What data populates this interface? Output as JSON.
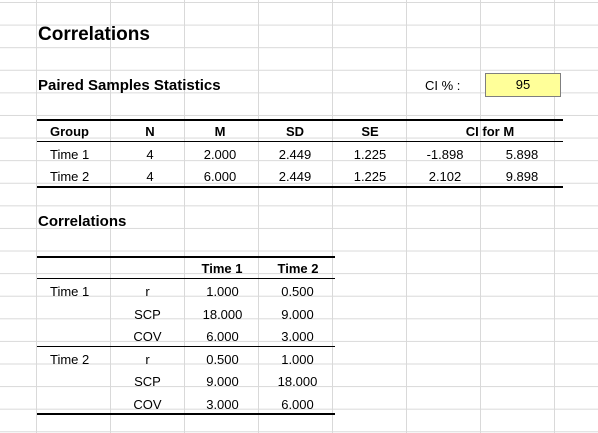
{
  "title": "Correlations",
  "paired": {
    "heading": "Paired Samples Statistics",
    "ci_label": "CI % :",
    "ci_value": "95",
    "headers": [
      "Group",
      "N",
      "M",
      "SD",
      "SE",
      "CI for M"
    ],
    "rows": [
      {
        "group": "Time 1",
        "n": "4",
        "m": "2.000",
        "sd": "2.449",
        "se": "1.225",
        "ci_low": "-1.898",
        "ci_high": "5.898"
      },
      {
        "group": "Time 2",
        "n": "4",
        "m": "6.000",
        "sd": "2.449",
        "se": "1.225",
        "ci_low": "2.102",
        "ci_high": "9.898"
      }
    ]
  },
  "correlations": {
    "heading": "Correlations",
    "col_headers": [
      "Time 1",
      "Time 2"
    ],
    "rows": [
      {
        "group": "Time 1",
        "stat": "r",
        "v1": "1.000",
        "v2": "0.500"
      },
      {
        "group": "",
        "stat": "SCP",
        "v1": "18.000",
        "v2": "9.000"
      },
      {
        "group": "",
        "stat": "COV",
        "v1": "6.000",
        "v2": "3.000"
      },
      {
        "group": "Time 2",
        "stat": "r",
        "v1": "0.500",
        "v2": "1.000"
      },
      {
        "group": "",
        "stat": "SCP",
        "v1": "9.000",
        "v2": "18.000"
      },
      {
        "group": "",
        "stat": "COV",
        "v1": "3.000",
        "v2": "6.000"
      }
    ]
  }
}
